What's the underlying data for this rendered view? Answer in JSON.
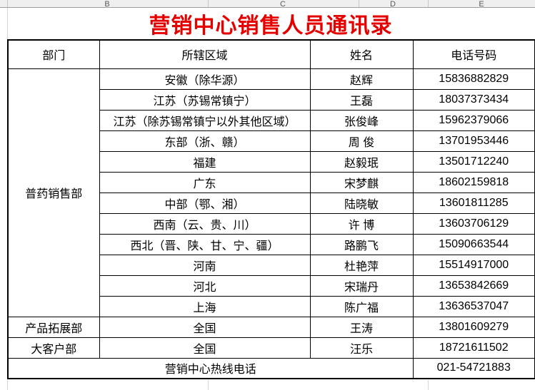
{
  "sheet": {
    "column_letters": [
      "B",
      "C",
      "D",
      "E"
    ]
  },
  "title": {
    "text": "营销中心销售人员通讯录",
    "color": "#e50000"
  },
  "table": {
    "columns": [
      "部门",
      "所辖区域",
      "姓名",
      "电话号码"
    ],
    "rows": [
      {
        "dept": {
          "text": "普药销售部",
          "rowspan": 12
        },
        "region": "安徽（除华源）",
        "name": "赵辉",
        "phone": "15836882829"
      },
      {
        "region": "江苏（苏锡常镇宁）",
        "name": "王磊",
        "phone": "18037373434"
      },
      {
        "region": "江苏（除苏锡常镇宁以外其他区域）",
        "name": "张俊峰",
        "phone": "15962379066"
      },
      {
        "region": "东部（浙、赣）",
        "name": "周 俊",
        "phone": "13701953446"
      },
      {
        "region": "福建",
        "name": "赵毅珉",
        "phone": "13501712240"
      },
      {
        "region": "广东",
        "name": "宋梦麒",
        "phone": "18602159818"
      },
      {
        "region": "中部（鄂、湘）",
        "name": "陆晓敏",
        "phone": "13601811285"
      },
      {
        "region": "西南（云、贵、川）",
        "name": "许 博",
        "phone": "13603706129"
      },
      {
        "region": "西北（晋、陕、甘、宁、疆）",
        "name": "路鹏飞",
        "phone": "15090663544"
      },
      {
        "region": "河南",
        "name": "杜艳萍",
        "phone": "15514917000"
      },
      {
        "region": "河北",
        "name": "宋瑞丹",
        "phone": "13653842669"
      },
      {
        "region": "上海",
        "name": "陈广福",
        "phone": "13636537047"
      },
      {
        "dept": {
          "text": "产品拓展部",
          "rowspan": 1
        },
        "region": "全国",
        "name": "王涛",
        "phone": "13801609279"
      },
      {
        "dept": {
          "text": "大客户部",
          "rowspan": 1
        },
        "region": "全国",
        "name": "汪乐",
        "phone": "18721611502"
      },
      {
        "hotline": "营销中心热线电话",
        "phone": "021-54721883"
      }
    ]
  }
}
